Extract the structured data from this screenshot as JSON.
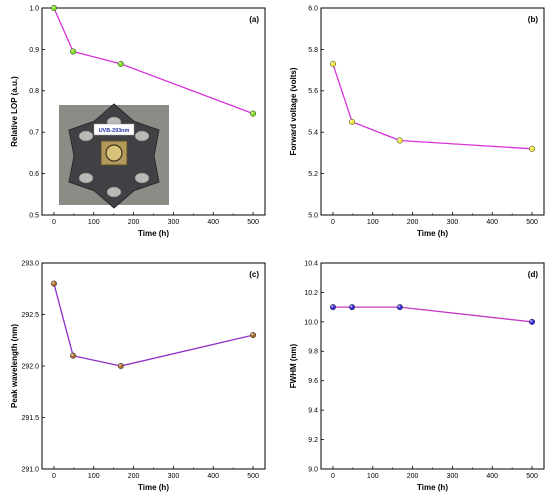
{
  "chart_data": [
    {
      "type": "line",
      "panel_label": "(a)",
      "xlabel": "Time (h)",
      "ylabel": "Relative LOP (a.u.)",
      "xlim": [
        -30,
        530
      ],
      "ylim": [
        0.5,
        1.0
      ],
      "xticks": [
        0,
        100,
        200,
        300,
        400,
        500
      ],
      "xtick_labels": [
        "0",
        "100",
        "200",
        "300",
        "400",
        "500"
      ],
      "yticks": [
        0.5,
        0.6,
        0.7,
        0.8,
        0.9,
        1.0
      ],
      "ytick_labels": [
        "0.5",
        "0.6",
        "0.7",
        "0.8",
        "0.9",
        "1.0"
      ],
      "x": [
        0,
        48,
        168,
        500
      ],
      "series": [
        {
          "values": [
            1.0,
            0.895,
            0.865,
            0.745
          ]
        }
      ],
      "marker_color": "#7fe01a",
      "line_color": "#d633d6",
      "grid": false,
      "inset_image_label": "UVB-293nm"
    },
    {
      "type": "line",
      "panel_label": "(b)",
      "xlabel": "Time (h)",
      "ylabel": "Forward voltage (volts)",
      "xlim": [
        -30,
        530
      ],
      "ylim": [
        5.0,
        6.0
      ],
      "xticks": [
        0,
        100,
        200,
        300,
        400,
        500
      ],
      "xtick_labels": [
        "0",
        "100",
        "200",
        "300",
        "400",
        "500"
      ],
      "yticks": [
        5.0,
        5.2,
        5.4,
        5.6,
        5.8,
        6.0
      ],
      "ytick_labels": [
        "5.0",
        "5.2",
        "5.4",
        "5.6",
        "5.8",
        "6.0"
      ],
      "x": [
        0,
        48,
        168,
        500
      ],
      "series": [
        {
          "values": [
            5.73,
            5.45,
            5.36,
            5.32
          ]
        }
      ],
      "marker_color": "#f2e83a",
      "line_color": "#d633d6",
      "grid": false
    },
    {
      "type": "line",
      "panel_label": "(c)",
      "xlabel": "Time (h)",
      "ylabel": "Peak wavelength (nm)",
      "xlim": [
        -30,
        530
      ],
      "ylim": [
        291.0,
        293.0
      ],
      "xticks": [
        0,
        100,
        200,
        300,
        400,
        500
      ],
      "xtick_labels": [
        "0",
        "100",
        "200",
        "300",
        "400",
        "500"
      ],
      "yticks": [
        291.0,
        291.5,
        292.0,
        292.5,
        293.0
      ],
      "ytick_labels": [
        "291.0",
        "291.5",
        "292.0",
        "292.5",
        "293.0"
      ],
      "x": [
        0,
        48,
        168,
        500
      ],
      "series": [
        {
          "values": [
            292.8,
            292.1,
            292.0,
            292.3
          ]
        }
      ],
      "marker_color": "#a86a2a",
      "line_color": "#8f2fc9",
      "grid": false
    },
    {
      "type": "line",
      "panel_label": "(d)",
      "xlabel": "Time (h)",
      "ylabel": "FWHM (nm)",
      "xlim": [
        -30,
        530
      ],
      "ylim": [
        9.0,
        10.4
      ],
      "xticks": [
        0,
        100,
        200,
        300,
        400,
        500
      ],
      "xtick_labels": [
        "0",
        "100",
        "200",
        "300",
        "400",
        "500"
      ],
      "yticks": [
        9.0,
        9.2,
        9.4,
        9.6,
        9.8,
        10.0,
        10.2,
        10.4
      ],
      "ytick_labels": [
        "9.0",
        "9.2",
        "9.4",
        "9.6",
        "9.8",
        "10.0",
        "10.2",
        "10.4"
      ],
      "x": [
        0,
        48,
        168,
        500
      ],
      "series": [
        {
          "values": [
            10.1,
            10.1,
            10.1,
            10.0
          ]
        }
      ],
      "marker_color": "#3a2ad6",
      "line_color": "#c23ac2",
      "grid": false
    }
  ]
}
